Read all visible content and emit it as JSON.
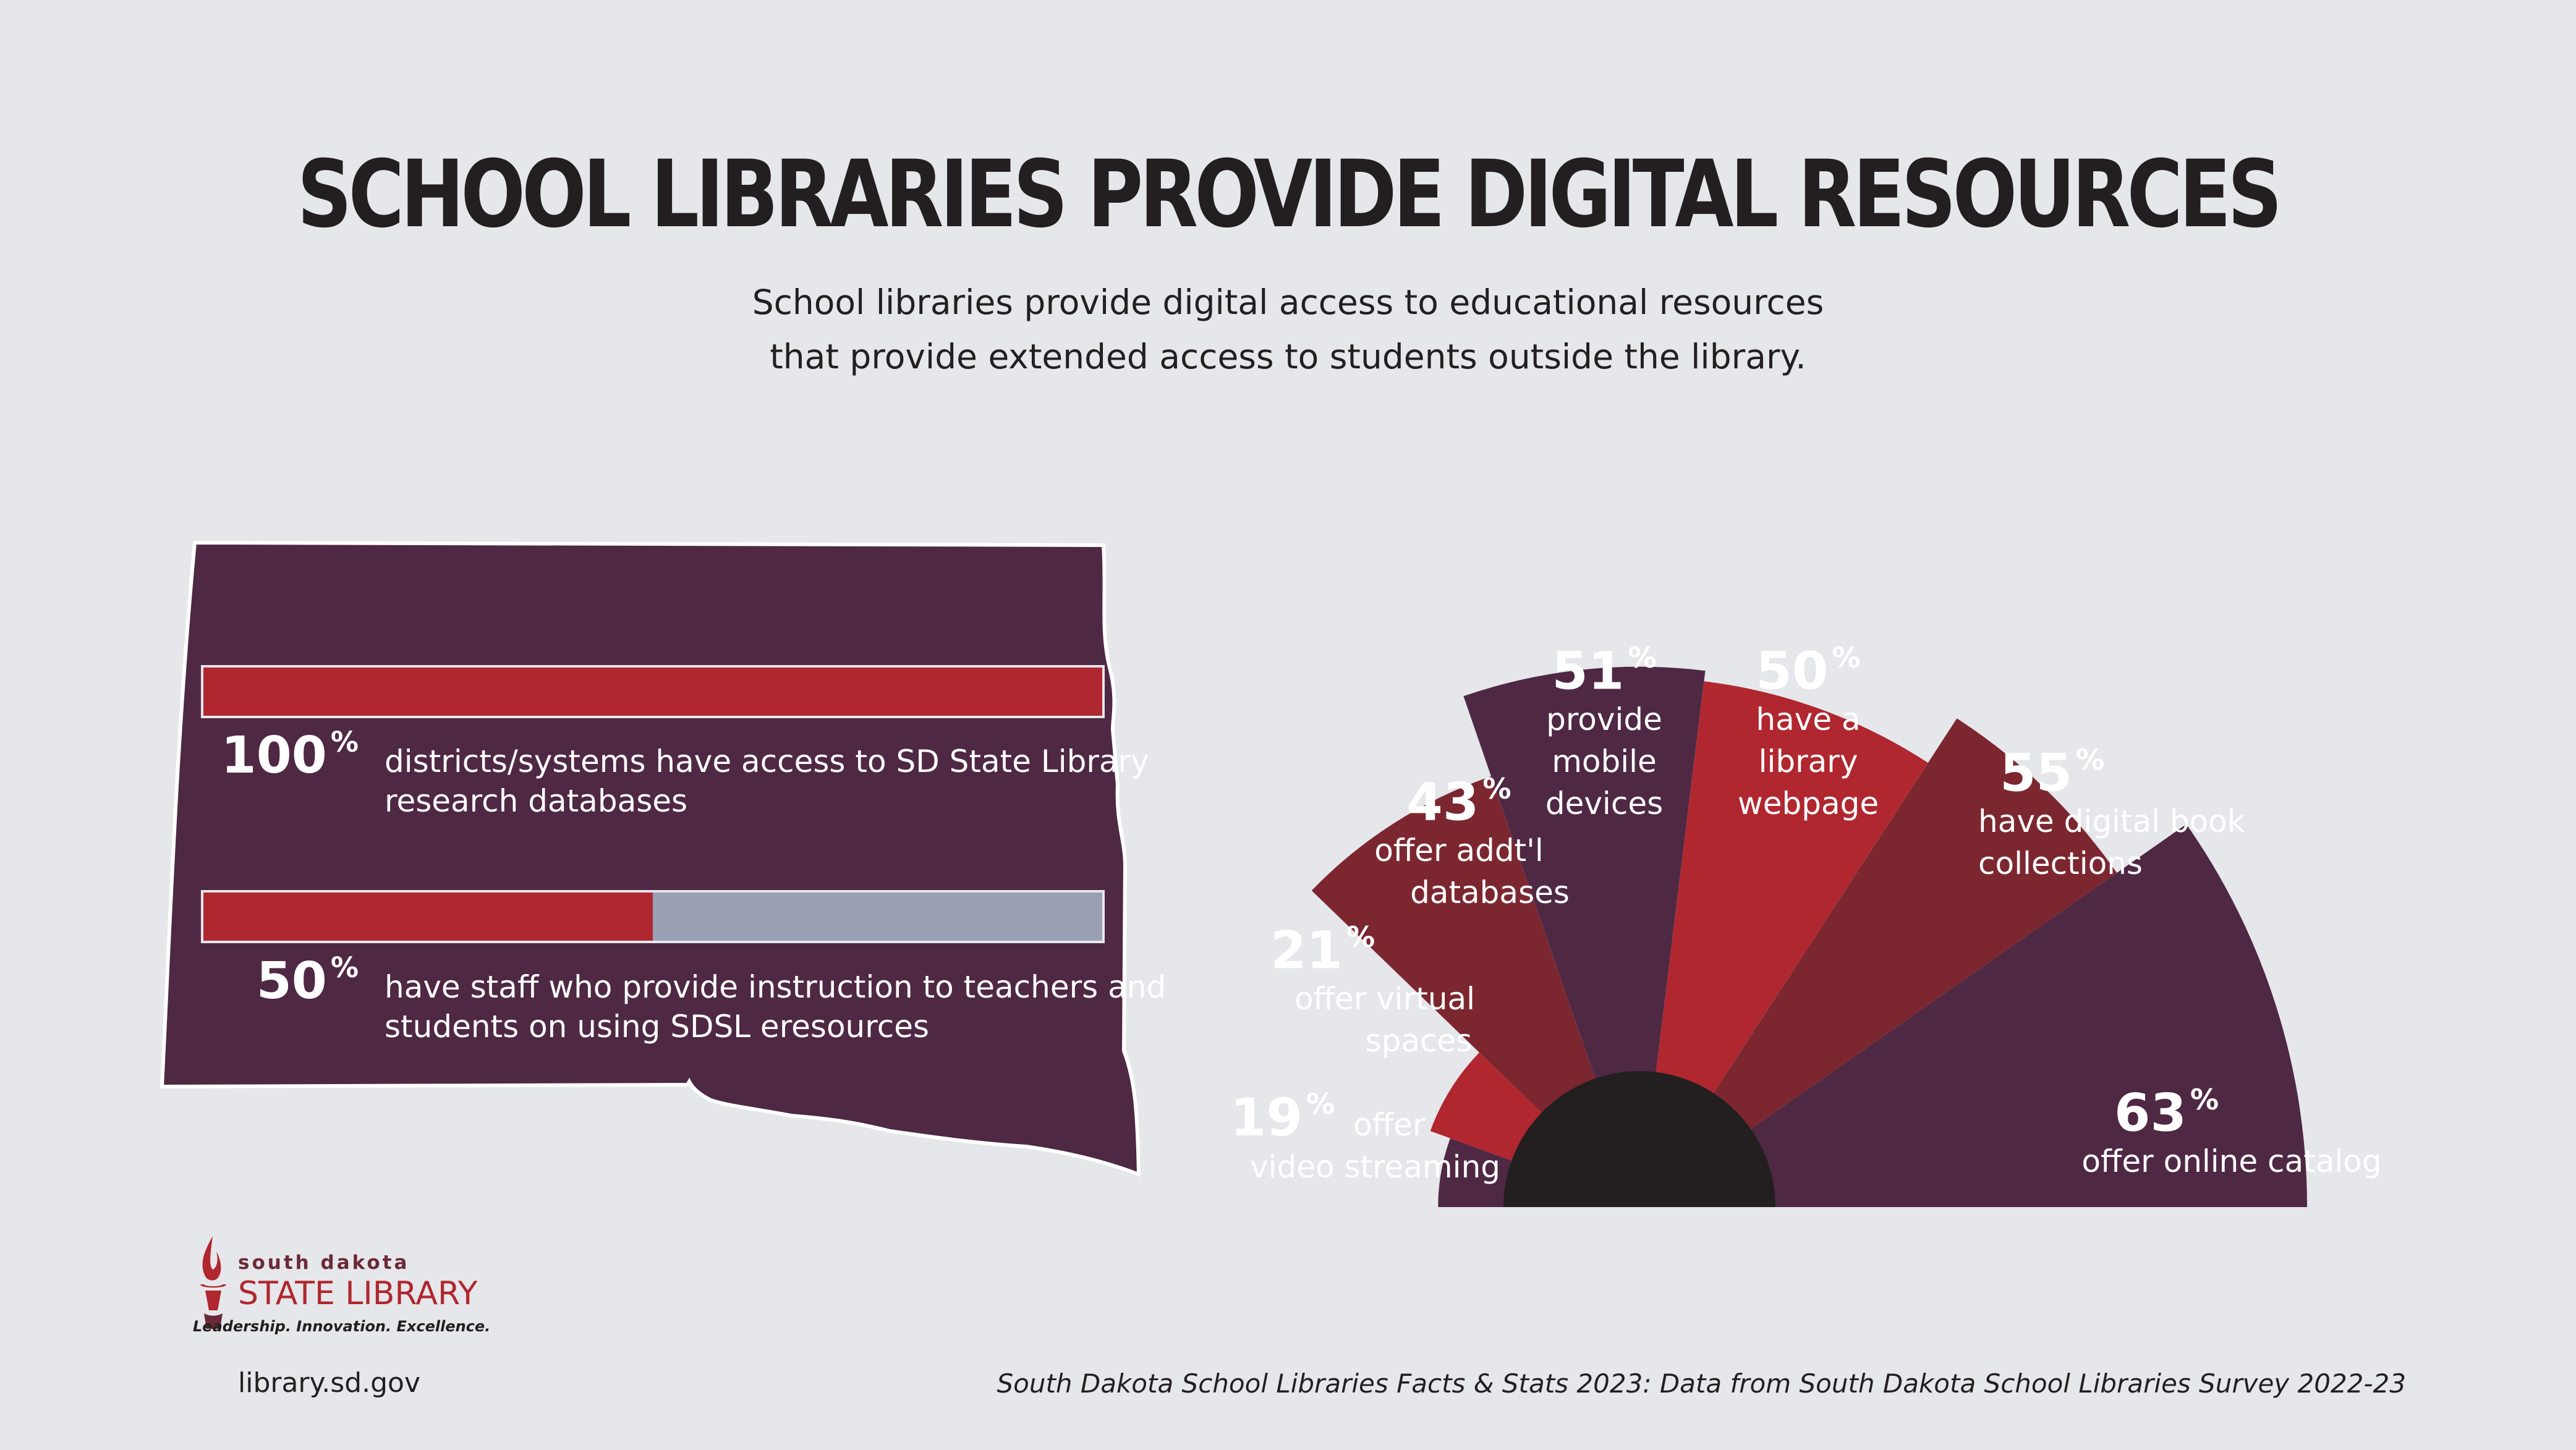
{
  "title": "SCHOOL LIBRARIES PROVIDE DIGITAL RESOURCES",
  "subtitle": [
    "School libraries provide digital access to educational resources",
    "that provide extended access to students outside the library."
  ],
  "colors": {
    "background": "#e6e7eb",
    "plum": "#4f2843",
    "red": "#b0272f",
    "maroon": "#7c2730",
    "gray": "#9aa0b4",
    "hub": "#231f20"
  },
  "stats": [
    {
      "value": "100",
      "unit": "%",
      "lines": [
        "districts/systems have access to SD State Library",
        "research databases"
      ]
    },
    {
      "value": "50",
      "unit": "%",
      "lines": [
        "have staff who provide instruction to teachers and",
        "students on using SDSL eresources"
      ]
    }
  ],
  "chart_data": {
    "type": "bar",
    "categories": [
      "Video streaming",
      "Virtual spaces",
      "Addt'l databases",
      "Mobile devices",
      "Library webpage",
      "Digital book collections",
      "Online catalog"
    ],
    "values": [
      19,
      21,
      43,
      51,
      50,
      55,
      63
    ],
    "unit": "%",
    "labels": [
      {
        "value": "19",
        "unit": "%",
        "lines": [
          "offer",
          "video streaming"
        ]
      },
      {
        "value": "21",
        "unit": "%",
        "lines": [
          "offer virtual",
          "spaces"
        ]
      },
      {
        "value": "43",
        "unit": "%",
        "lines": [
          "offer addt'l",
          "databases"
        ]
      },
      {
        "value": "51",
        "unit": "%",
        "lines": [
          "provide",
          "mobile",
          "devices"
        ]
      },
      {
        "value": "50",
        "unit": "%",
        "lines": [
          "have a",
          "library",
          "webpage"
        ]
      },
      {
        "value": "55",
        "unit": "%",
        "lines": [
          "have digital book",
          "collections"
        ]
      },
      {
        "value": "63",
        "unit": "%",
        "lines": [
          "offer online catalog"
        ]
      }
    ]
  },
  "logo": {
    "small_text": "south dakota",
    "big_text": "STATE LIBRARY",
    "tagline": "Leadership. Innovation. Excellence."
  },
  "footer": {
    "url": "library.sd.gov",
    "source": "South Dakota School Libraries Facts & Stats 2023: Data from South Dakota School Libraries Survey 2022-23"
  }
}
